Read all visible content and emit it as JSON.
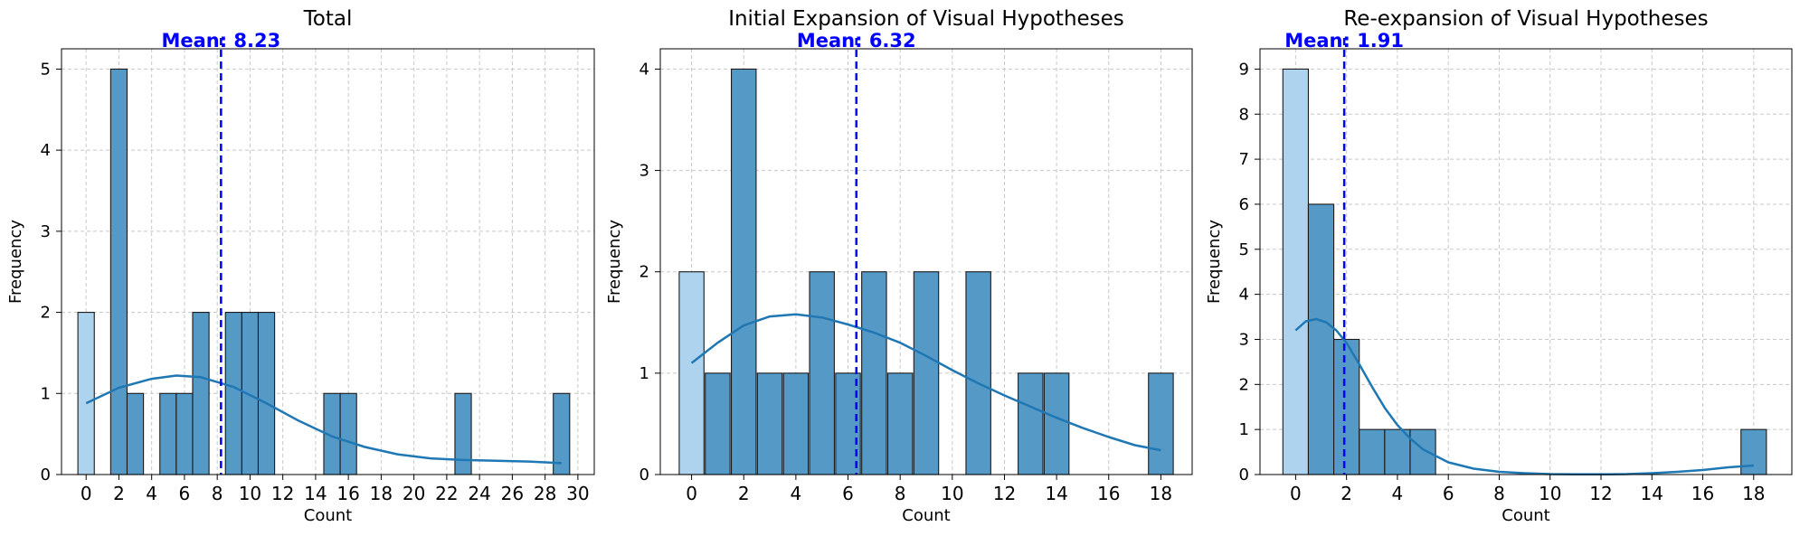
{
  "colors": {
    "bar": "#5599c7",
    "bar_zero": "#aed3ee",
    "kde": "#1f77b4",
    "mean": "#0000ff",
    "grid": "#c8c8c8",
    "axis": "#000000"
  },
  "chart_data": [
    {
      "type": "bar",
      "title": "Total",
      "xlabel": "Count",
      "ylabel": "Frequency",
      "mean_label": "Mean: 8.23",
      "mean": 8.23,
      "xlim": [
        -1.5,
        31.0
      ],
      "ylim": [
        0,
        5.25
      ],
      "xticks": [
        0,
        2,
        4,
        6,
        8,
        10,
        12,
        14,
        16,
        18,
        20,
        22,
        24,
        26,
        28,
        30
      ],
      "yticks": [
        0,
        1,
        2,
        3,
        4,
        5
      ],
      "bin_width": 1,
      "bins": [
        [
          0,
          2
        ],
        [
          2,
          5
        ],
        [
          3,
          1
        ],
        [
          5,
          1
        ],
        [
          6,
          1
        ],
        [
          7,
          2
        ],
        [
          9,
          2
        ],
        [
          10,
          2
        ],
        [
          11,
          2
        ],
        [
          15,
          1
        ],
        [
          16,
          1
        ],
        [
          23,
          1
        ],
        [
          29,
          1
        ]
      ],
      "kde": [
        [
          0,
          0.88
        ],
        [
          2,
          1.07
        ],
        [
          4,
          1.18
        ],
        [
          5.5,
          1.22
        ],
        [
          7,
          1.2
        ],
        [
          9,
          1.08
        ],
        [
          11,
          0.88
        ],
        [
          13,
          0.66
        ],
        [
          15,
          0.47
        ],
        [
          17,
          0.34
        ],
        [
          19,
          0.25
        ],
        [
          21,
          0.2
        ],
        [
          23,
          0.18
        ],
        [
          25,
          0.17
        ],
        [
          27,
          0.16
        ],
        [
          29,
          0.14
        ]
      ],
      "grid": true
    },
    {
      "type": "bar",
      "title": "Initial Expansion of Visual Hypotheses",
      "xlabel": "Count",
      "ylabel": "Frequency",
      "mean_label": "Mean: 6.32",
      "mean": 6.32,
      "xlim": [
        -1.2,
        19.2
      ],
      "ylim": [
        0,
        4.2
      ],
      "xticks": [
        0,
        2,
        4,
        6,
        8,
        10,
        12,
        14,
        16,
        18
      ],
      "yticks": [
        0,
        1,
        2,
        3,
        4
      ],
      "bin_width": 0.95,
      "bins": [
        [
          0,
          2
        ],
        [
          1,
          1
        ],
        [
          2,
          4
        ],
        [
          3,
          1
        ],
        [
          4,
          1
        ],
        [
          5,
          2
        ],
        [
          6,
          1
        ],
        [
          7,
          2
        ],
        [
          8,
          1
        ],
        [
          9,
          2
        ],
        [
          11,
          2
        ],
        [
          13,
          1
        ],
        [
          14,
          1
        ],
        [
          18,
          1
        ]
      ],
      "kde": [
        [
          0,
          1.1
        ],
        [
          1,
          1.3
        ],
        [
          2,
          1.47
        ],
        [
          3,
          1.56
        ],
        [
          4,
          1.58
        ],
        [
          5,
          1.55
        ],
        [
          6,
          1.48
        ],
        [
          7,
          1.4
        ],
        [
          8,
          1.3
        ],
        [
          9,
          1.17
        ],
        [
          10,
          1.03
        ],
        [
          11,
          0.9
        ],
        [
          12,
          0.78
        ],
        [
          13,
          0.67
        ],
        [
          14,
          0.56
        ],
        [
          15,
          0.46
        ],
        [
          16,
          0.37
        ],
        [
          17,
          0.29
        ],
        [
          18,
          0.24
        ]
      ],
      "grid": true
    },
    {
      "type": "bar",
      "title": "Re-expansion of Visual Hypotheses",
      "xlabel": "Count",
      "ylabel": "Frequency",
      "mean_label": "Mean: 1.91",
      "mean": 1.91,
      "xlim": [
        -1.4,
        19.5
      ],
      "ylim": [
        0,
        9.45
      ],
      "xticks": [
        0,
        2,
        4,
        6,
        8,
        10,
        12,
        14,
        16,
        18
      ],
      "yticks": [
        0,
        1,
        2,
        3,
        4,
        5,
        6,
        7,
        8,
        9
      ],
      "bin_width": 1,
      "bins": [
        [
          0,
          9
        ],
        [
          1,
          6
        ],
        [
          2,
          3
        ],
        [
          3,
          1
        ],
        [
          4,
          1
        ],
        [
          5,
          1
        ],
        [
          18,
          1
        ]
      ],
      "kde": [
        [
          0,
          3.2
        ],
        [
          0.4,
          3.4
        ],
        [
          0.8,
          3.45
        ],
        [
          1.2,
          3.38
        ],
        [
          1.6,
          3.2
        ],
        [
          2,
          2.92
        ],
        [
          2.5,
          2.45
        ],
        [
          3,
          1.95
        ],
        [
          3.5,
          1.48
        ],
        [
          4,
          1.1
        ],
        [
          4.5,
          0.8
        ],
        [
          5,
          0.56
        ],
        [
          6,
          0.27
        ],
        [
          7,
          0.13
        ],
        [
          8,
          0.06
        ],
        [
          9,
          0.03
        ],
        [
          10,
          0.01
        ],
        [
          11,
          0.005
        ],
        [
          12,
          0.005
        ],
        [
          13,
          0.01
        ],
        [
          14,
          0.03
        ],
        [
          15,
          0.06
        ],
        [
          16,
          0.1
        ],
        [
          17,
          0.16
        ],
        [
          18,
          0.2
        ]
      ],
      "grid": true
    }
  ]
}
